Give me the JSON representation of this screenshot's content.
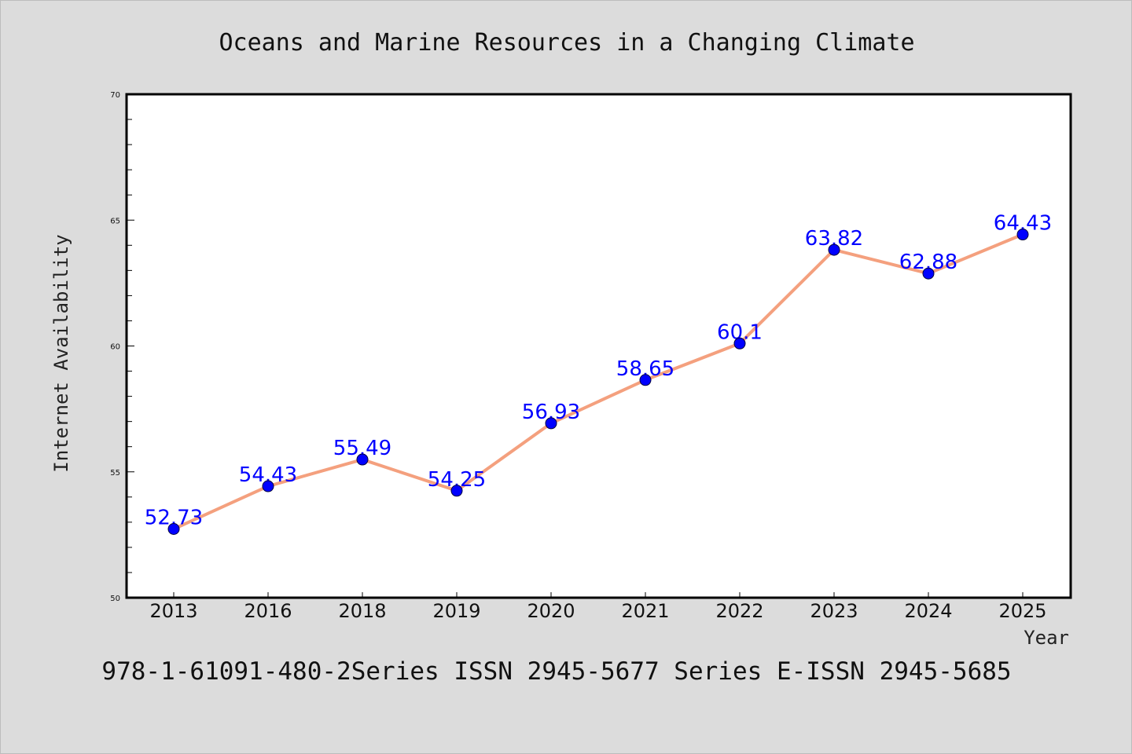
{
  "colors": {
    "background": "#dcdcdc",
    "plot_background": "#ffffff",
    "line": "#f4a07e",
    "marker": "#0000ff",
    "data_label": "#0000ff"
  },
  "footer": "978-1-61091-480-2Series ISSN 2945-5677 Series E-ISSN 2945-5685",
  "chart_data": {
    "type": "line",
    "title": "Oceans and Marine Resources in a Changing Climate",
    "xlabel": "Year",
    "ylabel": "Internet Availability",
    "categories": [
      "2013",
      "2016",
      "2018",
      "2019",
      "2020",
      "2021",
      "2022",
      "2023",
      "2024",
      "2025"
    ],
    "series": [
      {
        "values": [
          52.73,
          54.43,
          55.49,
          54.25,
          56.93,
          58.65,
          60.1,
          63.82,
          62.88,
          64.43
        ],
        "labels": [
          "52.73",
          "54.43",
          "55.49",
          "54.25",
          "56.93",
          "58.65",
          "60.1",
          "63.82",
          "62.88",
          "64.43"
        ]
      }
    ],
    "ylim": [
      50,
      70
    ],
    "yticks": [
      50,
      55,
      60,
      65,
      70
    ],
    "grid": false,
    "legend": "none"
  }
}
